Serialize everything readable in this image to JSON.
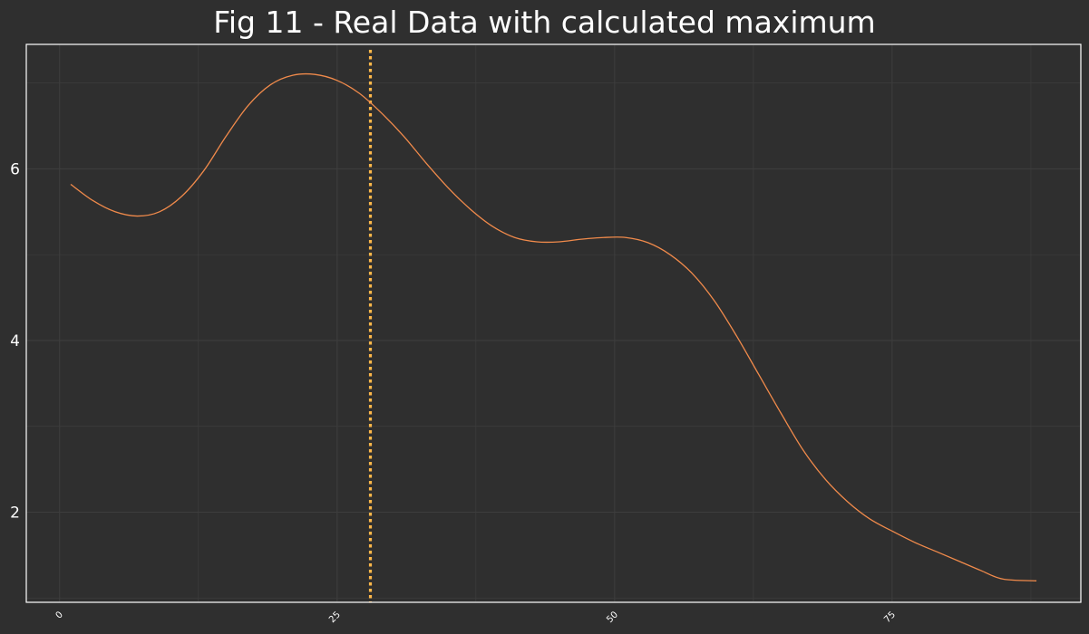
{
  "chart_data": {
    "type": "line",
    "title": "Fig 11 - Real Data with calculated maximum",
    "xlabel": "",
    "ylabel": "",
    "xlim": [
      -3,
      92
    ],
    "ylim": [
      0.95,
      7.45
    ],
    "x_ticks": [
      {
        "value": 0,
        "label": "0"
      },
      {
        "value": 25,
        "label": "25"
      },
      {
        "value": 50,
        "label": "50"
      },
      {
        "value": 75,
        "label": "75"
      }
    ],
    "y_ticks": [
      {
        "value": 2,
        "label": "2"
      },
      {
        "value": 4,
        "label": "4"
      },
      {
        "value": 6,
        "label": "6"
      }
    ],
    "grid": true,
    "legend": "none",
    "series": [
      {
        "x": [
          1,
          3,
          5,
          7,
          9,
          11,
          13,
          15,
          17,
          19,
          21,
          23,
          25,
          27,
          29,
          31,
          33,
          35,
          37,
          39,
          41,
          43,
          45,
          47,
          49,
          51,
          53,
          55,
          57,
          59,
          61,
          63,
          65,
          67,
          69,
          71,
          73,
          75,
          77,
          79,
          81,
          83,
          85,
          88
        ],
        "y": [
          5.82,
          5.63,
          5.5,
          5.45,
          5.5,
          5.68,
          5.98,
          6.38,
          6.74,
          6.98,
          7.09,
          7.1,
          7.03,
          6.88,
          6.65,
          6.38,
          6.07,
          5.78,
          5.53,
          5.33,
          5.2,
          5.15,
          5.15,
          5.18,
          5.2,
          5.2,
          5.14,
          5.0,
          4.78,
          4.46,
          4.05,
          3.6,
          3.15,
          2.72,
          2.38,
          2.12,
          1.92,
          1.78,
          1.65,
          1.54,
          1.43,
          1.32,
          1.22,
          1.2
        ],
        "color": "#f08a4b"
      }
    ],
    "annotations": [
      {
        "type": "vline",
        "x": 28,
        "style": "dotted",
        "color": "#ffb84a"
      }
    ],
    "colors": {
      "background": "#2f2f2f",
      "frame": "#ffffff",
      "grid": "#3d3d3d",
      "text": "#ffffff"
    }
  }
}
